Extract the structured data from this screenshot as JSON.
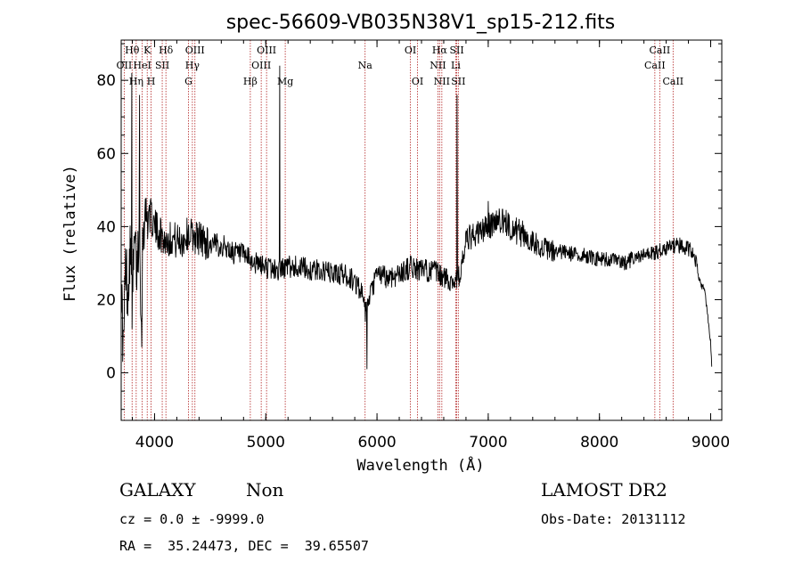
{
  "chart_data": {
    "type": "line",
    "title": "spec-56609-VB035N38V1_sp15-212.fits",
    "xlabel": "Wavelength (Å)",
    "ylabel": "Flux (relative)",
    "xlim": [
      3700,
      9100
    ],
    "ylim": [
      -13,
      91
    ],
    "xticks": [
      4000,
      5000,
      6000,
      7000,
      8000,
      9000
    ],
    "yticks": [
      0,
      20,
      40,
      60,
      80
    ],
    "grid": false,
    "line_color": "#000000",
    "marker_color": "#b22222",
    "spectrum": {
      "anchors": [
        [
          3700,
          25
        ],
        [
          3720,
          5
        ],
        [
          3740,
          30
        ],
        [
          3760,
          22
        ],
        [
          3780,
          35
        ],
        [
          3800,
          18
        ],
        [
          3820,
          36
        ],
        [
          3840,
          28
        ],
        [
          3860,
          38
        ],
        [
          3880,
          20
        ],
        [
          3900,
          42
        ],
        [
          3950,
          44
        ],
        [
          4000,
          40
        ],
        [
          4050,
          38
        ],
        [
          4100,
          36
        ],
        [
          4150,
          37
        ],
        [
          4200,
          36
        ],
        [
          4250,
          36
        ],
        [
          4300,
          38
        ],
        [
          4400,
          37
        ],
        [
          4500,
          35
        ],
        [
          4600,
          35
        ],
        [
          4700,
          33
        ],
        [
          4800,
          32
        ],
        [
          4900,
          30
        ],
        [
          5000,
          29
        ],
        [
          5100,
          28
        ],
        [
          5200,
          29
        ],
        [
          5300,
          29
        ],
        [
          5400,
          28
        ],
        [
          5500,
          28
        ],
        [
          5600,
          27
        ],
        [
          5700,
          27
        ],
        [
          5800,
          25
        ],
        [
          5850,
          23
        ],
        [
          5900,
          16
        ],
        [
          5950,
          22
        ],
        [
          6000,
          27
        ],
        [
          6100,
          26
        ],
        [
          6200,
          27
        ],
        [
          6300,
          29
        ],
        [
          6400,
          28
        ],
        [
          6500,
          28
        ],
        [
          6600,
          26
        ],
        [
          6700,
          25
        ],
        [
          6750,
          27
        ],
        [
          6800,
          36
        ],
        [
          6900,
          38
        ],
        [
          7000,
          40
        ],
        [
          7100,
          42
        ],
        [
          7150,
          41
        ],
        [
          7200,
          40
        ],
        [
          7300,
          38
        ],
        [
          7400,
          36
        ],
        [
          7500,
          34
        ],
        [
          7600,
          33
        ],
        [
          7700,
          33
        ],
        [
          7800,
          32
        ],
        [
          7900,
          32
        ],
        [
          8000,
          31
        ],
        [
          8100,
          31
        ],
        [
          8200,
          30
        ],
        [
          8300,
          31
        ],
        [
          8400,
          32
        ],
        [
          8500,
          33
        ],
        [
          8600,
          34
        ],
        [
          8700,
          35
        ],
        [
          8800,
          34
        ],
        [
          8850,
          33
        ],
        [
          8900,
          25
        ],
        [
          8950,
          22
        ],
        [
          9000,
          8
        ],
        [
          9010,
          2
        ]
      ],
      "spikes": [
        [
          3795,
          82
        ],
        [
          3865,
          76
        ],
        [
          3885,
          7
        ],
        [
          5125,
          84
        ],
        [
          5910,
          1
        ],
        [
          6720,
          76
        ],
        [
          7000,
          47
        ]
      ]
    },
    "line_markers": [
      {
        "label": "Hθ",
        "x": 3798,
        "row": 1
      },
      {
        "label": "K",
        "x": 3934,
        "row": 1
      },
      {
        "label": "Hδ",
        "x": 4102,
        "row": 1
      },
      {
        "label": "OIII",
        "x": 4363,
        "row": 1
      },
      {
        "label": "OIII",
        "x": 5007,
        "row": 1
      },
      {
        "label": "OI",
        "x": 6300,
        "row": 1
      },
      {
        "label": "Hα",
        "x": 6563,
        "row": 1
      },
      {
        "label": "SII",
        "x": 6717,
        "row": 1
      },
      {
        "label": "CaII",
        "x": 8542,
        "row": 1
      },
      {
        "label": "OII",
        "x": 3727,
        "row": 2
      },
      {
        "label": "HeI",
        "x": 3889,
        "row": 2
      },
      {
        "label": "SII",
        "x": 4069,
        "row": 2
      },
      {
        "label": "Hγ",
        "x": 4340,
        "row": 2
      },
      {
        "label": "OIII",
        "x": 4959,
        "row": 2
      },
      {
        "label": "Na",
        "x": 5893,
        "row": 2
      },
      {
        "label": "NII",
        "x": 6548,
        "row": 2
      },
      {
        "label": "Li",
        "x": 6708,
        "row": 2
      },
      {
        "label": "CaII",
        "x": 8498,
        "row": 2
      },
      {
        "label": "Hη",
        "x": 3835,
        "row": 3
      },
      {
        "label": "H",
        "x": 3969,
        "row": 3
      },
      {
        "label": "G",
        "x": 4305,
        "row": 3
      },
      {
        "label": "Hβ",
        "x": 4861,
        "row": 3
      },
      {
        "label": "Mg",
        "x": 5175,
        "row": 3
      },
      {
        "label": "OI",
        "x": 6364,
        "row": 3
      },
      {
        "label": "NII",
        "x": 6583,
        "row": 3
      },
      {
        "label": "SII",
        "x": 6731,
        "row": 3
      },
      {
        "label": "CaII",
        "x": 8662,
        "row": 3
      }
    ]
  },
  "info": {
    "object_class": "GALAXY",
    "subclass": "Non",
    "survey": "LAMOST DR2",
    "cz_line": "cz = 0.0 ± -9999.0",
    "obs_date": "Obs-Date: 20131112",
    "coords": "RA =  35.24473, DEC =  39.65507"
  }
}
